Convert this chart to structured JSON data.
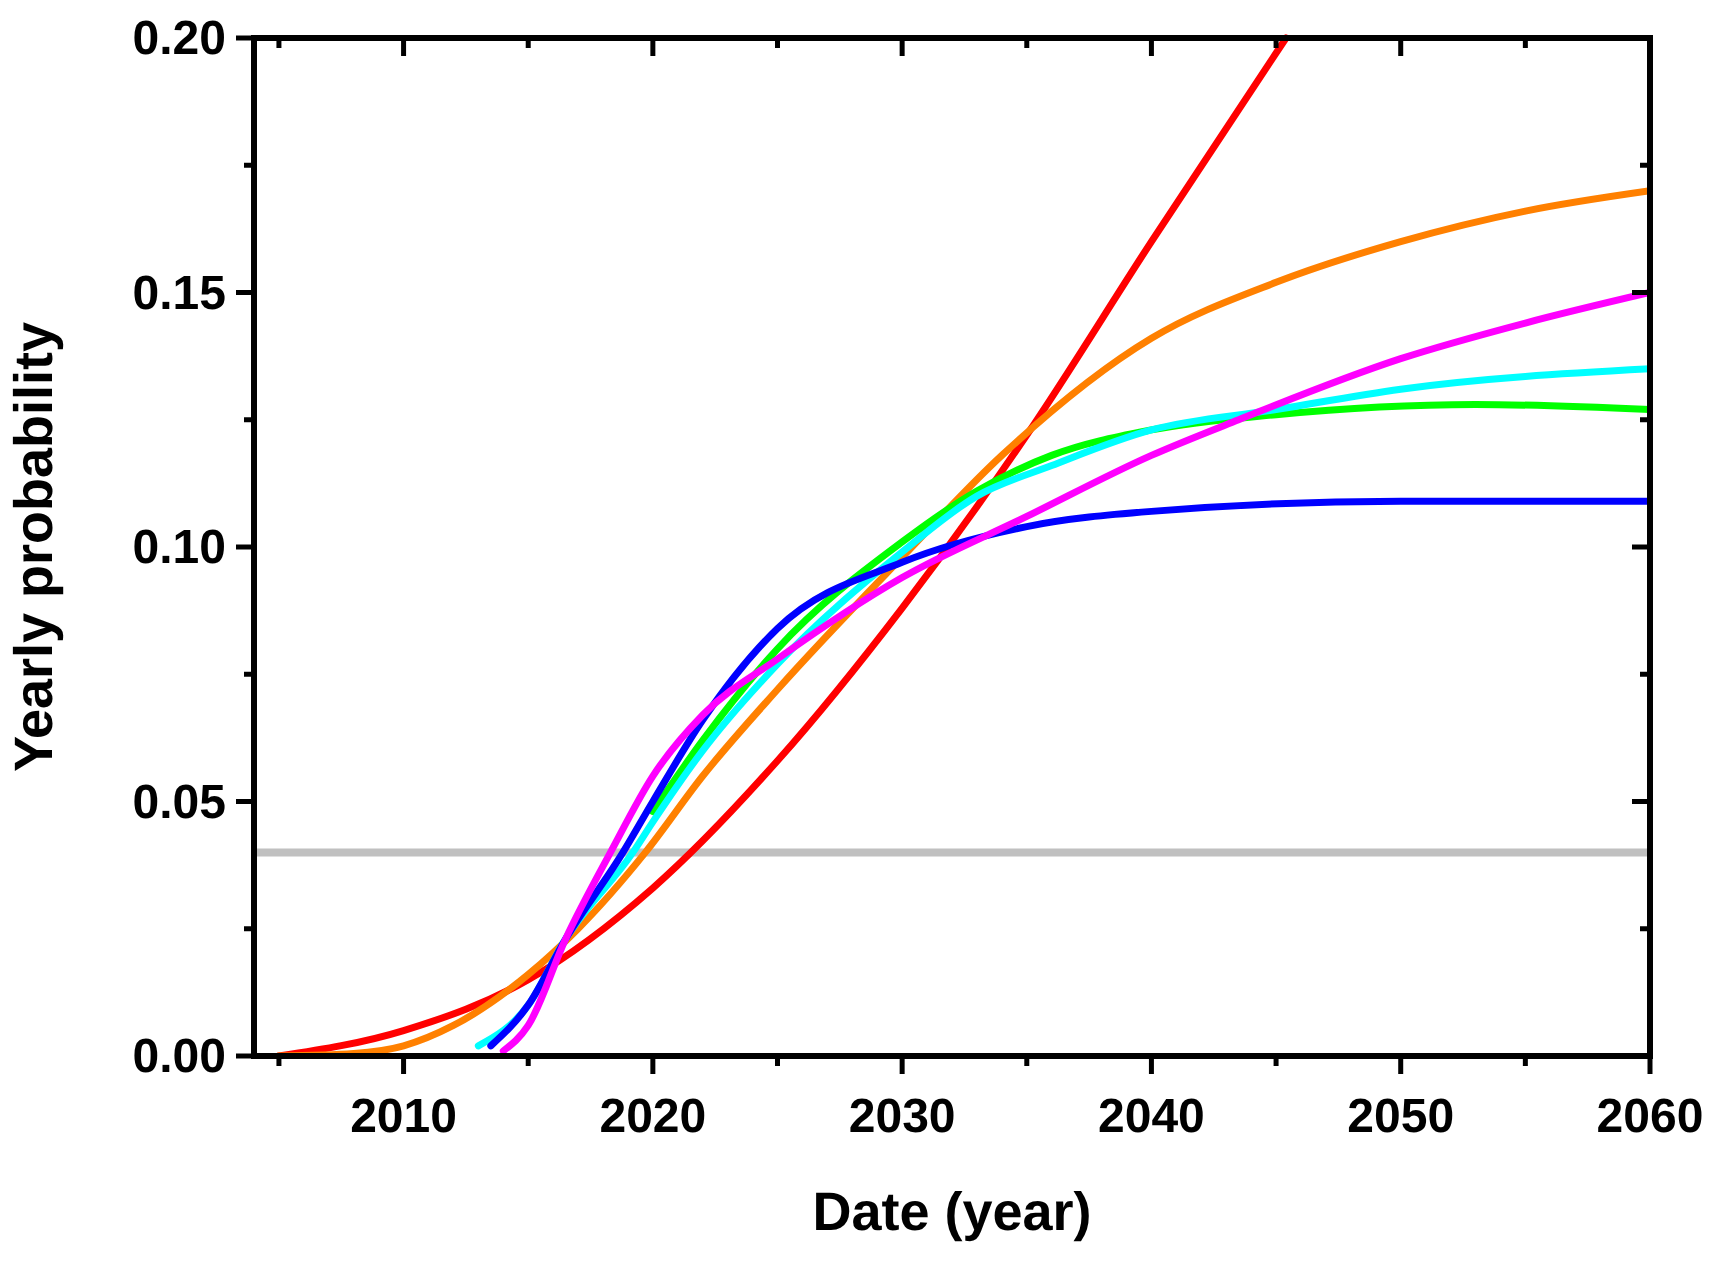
{
  "chart_data": {
    "type": "line",
    "xlabel": "Date (year)",
    "ylabel": "Yearly probability",
    "xlim": [
      2004,
      2060
    ],
    "ylim": [
      0,
      0.2
    ],
    "xticks": [
      {
        "value": 2005,
        "label": null
      },
      2010,
      {
        "value": 2015,
        "label": null
      },
      2020,
      {
        "value": 2025,
        "label": null
      },
      2030,
      {
        "value": 2035,
        "label": null
      },
      2040,
      {
        "value": 2045,
        "label": null
      },
      2050,
      {
        "value": 2055,
        "label": null
      },
      2060
    ],
    "yticks": [
      {
        "value": 0,
        "label": "0.00"
      },
      {
        "value": 0.025,
        "label": null
      },
      {
        "value": 0.05,
        "label": "0.05"
      },
      {
        "value": 0.075,
        "label": null
      },
      {
        "value": 0.1,
        "label": "0.10"
      },
      {
        "value": 0.125,
        "label": null
      },
      {
        "value": 0.15,
        "label": "0.15"
      },
      {
        "value": 0.175,
        "label": null
      },
      {
        "value": 0.2,
        "label": "0.20"
      }
    ],
    "grid": false,
    "marker": "none",
    "line_style": "solid",
    "ref_lines": [
      {
        "axis": "y",
        "value": 0.04,
        "color": "#c0c0c0"
      }
    ],
    "series": [
      {
        "color": "#ff0000",
        "x": [
          2005,
          2010,
          2015,
          2020,
          2025,
          2030,
          2035,
          2040,
          2045.4
        ],
        "values": [
          0,
          0.005,
          0.015,
          0.033,
          0.058,
          0.088,
          0.122,
          0.16,
          0.2
        ]
      },
      {
        "color": "#ff8000",
        "x": [
          2005,
          2008,
          2010,
          2012,
          2015,
          2017,
          2019.7,
          2022,
          2025,
          2030,
          2034,
          2040,
          2045,
          2050,
          2055,
          2060
        ],
        "values": [
          0,
          0.0005,
          0.002,
          0.006,
          0.016,
          0.025,
          0.04,
          0.055,
          0.072,
          0.098,
          0.118,
          0.141,
          0.152,
          0.16,
          0.166,
          0.17
        ]
      },
      {
        "color": "#00ff00",
        "x": [
          2020,
          2022,
          2025,
          2030,
          2033,
          2036,
          2040,
          2045,
          2053,
          2060
        ],
        "values": [
          0.048,
          0.062,
          0.08,
          0.101,
          0.111,
          0.118,
          0.123,
          0.126,
          0.128,
          0.127
        ]
      },
      {
        "color": "#00ffff",
        "x": [
          2013,
          2015,
          2016.5,
          2019.2,
          2020,
          2022,
          2025,
          2030,
          2033,
          2036,
          2040,
          2045,
          2050,
          2060
        ],
        "values": [
          0.002,
          0.01,
          0.023,
          0.04,
          0.046,
          0.06,
          0.077,
          0.099,
          0.11,
          0.116,
          0.123,
          0.127,
          0.131,
          0.135
        ]
      },
      {
        "color": "#0000ff",
        "x": [
          2013.5,
          2015,
          2016.5,
          2018.8,
          2020,
          2022,
          2025,
          2030,
          2035,
          2040,
          2050,
          2060
        ],
        "values": [
          0.002,
          0.01,
          0.023,
          0.04,
          0.05,
          0.066,
          0.084,
          0.097,
          0.104,
          0.107,
          0.109,
          0.109
        ]
      },
      {
        "color": "#ff00ff",
        "x": [
          2014,
          2015,
          2016.5,
          2018.3,
          2020,
          2022,
          2025,
          2030,
          2035,
          2040,
          2043.5,
          2050,
          2055,
          2060
        ],
        "values": [
          0.001,
          0.006,
          0.023,
          0.04,
          0.055,
          0.067,
          0.078,
          0.094,
          0.106,
          0.118,
          0.125,
          0.137,
          0.144,
          0.15
        ]
      }
    ]
  }
}
